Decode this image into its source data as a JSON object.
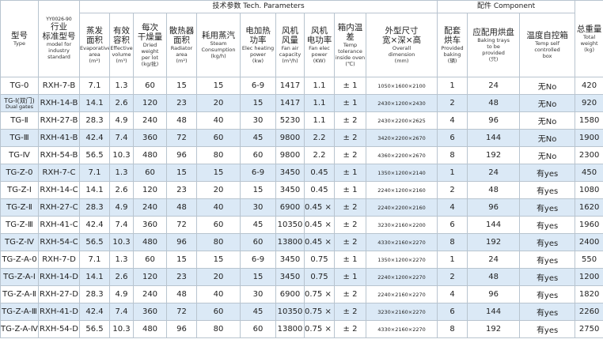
{
  "table": {
    "group_headers": [
      "技术参数 Tech. Parameters",
      "配件 Component"
    ],
    "columns": [
      {
        "code": null,
        "zh": [
          "型号"
        ],
        "en": [
          "Type"
        ]
      },
      {
        "code": "YY0026-90",
        "zh": [
          "行业",
          "标准型号"
        ],
        "en": [
          "model for",
          "industry",
          "standard"
        ]
      },
      {
        "code": null,
        "zh": [
          "蒸发",
          "面积"
        ],
        "en": [
          "Evaporative",
          "area",
          "(m²)"
        ]
      },
      {
        "code": null,
        "zh": [
          "有效",
          "容积"
        ],
        "en": [
          "Effective",
          "volume",
          "(m³)"
        ]
      },
      {
        "code": null,
        "zh": [
          "每次",
          "干燥量"
        ],
        "en": [
          "Dried weight",
          "per lot",
          "(kg/批)"
        ]
      },
      {
        "code": null,
        "zh": [
          "散热器",
          "面积"
        ],
        "en": [
          "Radiator",
          "area",
          "(m²)"
        ]
      },
      {
        "code": null,
        "zh": [
          "耗用蒸汽"
        ],
        "en": [
          "Steam",
          "Consumption",
          "(kg/h)"
        ]
      },
      {
        "code": null,
        "zh": [
          "电加热",
          "功率"
        ],
        "en": [
          "Elec heating",
          "power",
          "(kw)"
        ]
      },
      {
        "code": null,
        "zh": [
          "风机",
          "风量"
        ],
        "en": [
          "Fan air",
          "capacity",
          "(m³/h)"
        ]
      },
      {
        "code": null,
        "zh": [
          "风机",
          "电功率"
        ],
        "en": [
          "Fan elec",
          "power",
          "(KW)"
        ]
      },
      {
        "code": null,
        "zh": [
          "箱内温差"
        ],
        "en": [
          "Temp",
          "tolerance",
          "inside oven",
          "(℃)"
        ]
      },
      {
        "code": null,
        "zh": [
          "外型尺寸",
          "宽×深×高"
        ],
        "en": [
          "Overall",
          "dimension",
          "(mm)"
        ]
      },
      {
        "code": null,
        "zh": [
          "配套",
          "烘车"
        ],
        "en": [
          "Provided",
          "baking",
          "(辆)"
        ]
      },
      {
        "code": null,
        "zh": [
          "应配用烘盘"
        ],
        "en": [
          "Baking trays",
          "to be",
          "provided",
          "(只)"
        ]
      },
      {
        "code": null,
        "zh": [
          "温度自控箱"
        ],
        "en": [
          "Temp self",
          "controlled",
          "box"
        ]
      },
      {
        "code": null,
        "zh": [
          "总重量"
        ],
        "en": [
          "Total",
          "weight",
          "(kg)"
        ]
      }
    ],
    "rows": [
      [
        "TG-0",
        "RXH-7-B",
        "7.1",
        "1.3",
        "60",
        "15",
        "15",
        "6-9",
        "1417",
        "1.1",
        "± 1",
        "1050×1600×2100",
        "1",
        "24",
        "无No",
        "420"
      ],
      [
        [
          "TG-Ⅰ(双门)",
          "Dual gates"
        ],
        "RXH-14-B",
        "14.1",
        "2.6",
        "120",
        "23",
        "20",
        "15",
        "1417",
        "1.1",
        "± 1",
        "2430×1200×2430",
        "2",
        "48",
        "无No",
        "920"
      ],
      [
        "TG-Ⅱ",
        "RXH-27-B",
        "28.3",
        "4.9",
        "240",
        "48",
        "40",
        "30",
        "5230",
        "1.1",
        "± 2",
        "2430×2200×2625",
        "4",
        "96",
        "无No",
        "1580"
      ],
      [
        "TG-Ⅲ",
        "RXH-41-B",
        "42.4",
        "7.4",
        "360",
        "72",
        "60",
        "45",
        "9800",
        "2.2",
        "± 2",
        "3420×2200×2670",
        "6",
        "144",
        "无No",
        "1900"
      ],
      [
        "TG-Ⅳ",
        "RXH-54-B",
        "56.5",
        "10.3",
        "480",
        "96",
        "80",
        "60",
        "9800",
        "2.2",
        "± 2",
        "4360×2200×2670",
        "8",
        "192",
        "无No",
        "2300"
      ],
      [
        "TG-Z-0",
        "RXH-7-C",
        "7.1",
        "1.3",
        "60",
        "15",
        "15",
        "6-9",
        "3450",
        "0.45",
        "± 1",
        "1350×1200×2140",
        "1",
        "24",
        "有yes",
        "450"
      ],
      [
        "TG-Z-Ⅰ",
        "RXH-14-C",
        "14.1",
        "2.6",
        "120",
        "23",
        "20",
        "15",
        "3450",
        "0.45",
        "± 1",
        "2240×1200×2160",
        "2",
        "48",
        "有yes",
        "1080"
      ],
      [
        "TG-Z-Ⅱ",
        "RXH-27-C",
        "28.3",
        "4.9",
        "240",
        "48",
        "40",
        "30",
        "6900",
        "0.45 × 2",
        "± 2",
        "2240×2200×2160",
        "4",
        "96",
        "有yes",
        "1620"
      ],
      [
        "TG-Z-Ⅲ",
        "RXH-41-C",
        "42.4",
        "7.4",
        "360",
        "72",
        "60",
        "45",
        "10350",
        "0.45 × 3",
        "± 2",
        "3230×2160×2200",
        "6",
        "144",
        "有yes",
        "1960"
      ],
      [
        "TG-Z-Ⅳ",
        "RXH-54-C",
        "56.5",
        "10.3",
        "480",
        "96",
        "80",
        "60",
        "13800",
        "0.45 × 4",
        "± 2",
        "4330×2160×2270",
        "8",
        "192",
        "有yes",
        "2400"
      ],
      [
        "TG-Z-A-0",
        "RXH-7-D",
        "7.1",
        "1.3",
        "60",
        "15",
        "15",
        "6-9",
        "3450",
        "0.75",
        "± 1",
        "1350×1200×2270",
        "1",
        "24",
        "有yes",
        "550"
      ],
      [
        "TG-Z-A-Ⅰ",
        "RXH-14-D",
        "14.1",
        "2.6",
        "120",
        "23",
        "20",
        "15",
        "3450",
        "0.75",
        "± 1",
        "2240×1200×2270",
        "2",
        "48",
        "有yes",
        "1200"
      ],
      [
        "TG-Z-A-Ⅱ",
        "RXH-27-D",
        "28.3",
        "4.9",
        "240",
        "48",
        "40",
        "30",
        "6900",
        "0.75 × 2",
        "± 2",
        "2240×2160×2270",
        "4",
        "96",
        "有yes",
        "1820"
      ],
      [
        "TG-Z-A-Ⅲ",
        "RXH-41-D",
        "42.4",
        "7.4",
        "360",
        "72",
        "60",
        "45",
        "10350",
        "0.75 × 3",
        "± 2",
        "3230×2160×2270",
        "6",
        "144",
        "有yes",
        "2260"
      ],
      [
        "TG-Z-A-Ⅳ",
        "RXH-54-D",
        "56.5",
        "10.3",
        "480",
        "96",
        "80",
        "60",
        "13800",
        "0.75 × 4",
        "± 2",
        "4330×2160×2270",
        "8",
        "192",
        "有yes",
        "2750"
      ]
    ]
  }
}
